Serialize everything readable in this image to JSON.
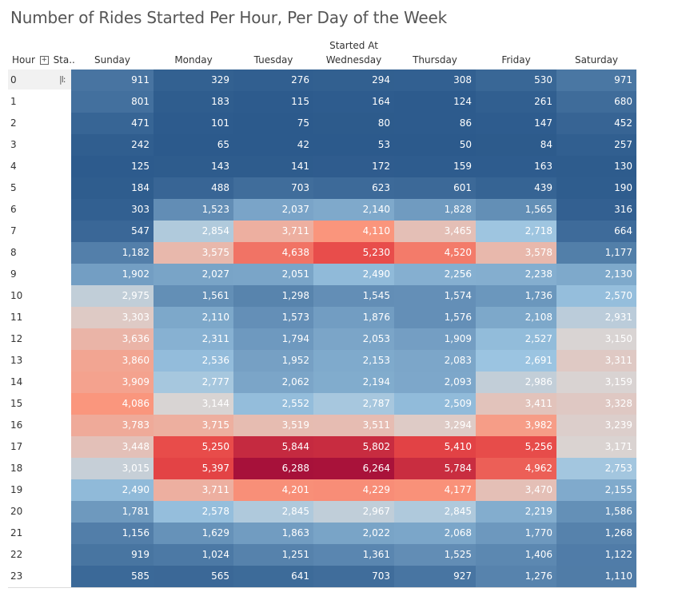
{
  "title": "Number of Rides Started Per Hour, Per Day of the Week",
  "row_header": "Hour",
  "row_header_2": "Sta..",
  "column_group_label": "Started At",
  "icons": {
    "expand": "plus-box-icon",
    "sort": "sort-icon"
  },
  "colors": {
    "low": "#2c5a8c",
    "mid": "#d9d4d3",
    "high": "#a7113a"
  },
  "chart_data": {
    "type": "heatmap",
    "title": "Number of Rides Started Per Hour, Per Day of the Week",
    "xlabel": "Started At",
    "ylabel": "Hour",
    "columns": [
      "Sunday",
      "Monday",
      "Tuesday",
      "Wednesday",
      "Thursday",
      "Friday",
      "Saturday"
    ],
    "rows": [
      "0",
      "1",
      "2",
      "3",
      "4",
      "5",
      "6",
      "7",
      "8",
      "9",
      "10",
      "11",
      "12",
      "13",
      "14",
      "15",
      "16",
      "17",
      "18",
      "19",
      "20",
      "21",
      "22",
      "23"
    ],
    "values": [
      [
        911,
        329,
        276,
        294,
        308,
        530,
        971
      ],
      [
        801,
        183,
        115,
        164,
        124,
        261,
        680
      ],
      [
        471,
        101,
        75,
        80,
        86,
        147,
        452
      ],
      [
        242,
        65,
        42,
        53,
        50,
        84,
        257
      ],
      [
        125,
        143,
        141,
        172,
        159,
        163,
        130
      ],
      [
        184,
        488,
        703,
        623,
        601,
        439,
        190
      ],
      [
        303,
        1523,
        2037,
        2140,
        1828,
        1565,
        316
      ],
      [
        547,
        2854,
        3711,
        4110,
        3465,
        2718,
        664
      ],
      [
        1182,
        3575,
        4638,
        5230,
        4520,
        3578,
        1177
      ],
      [
        1902,
        2027,
        2051,
        2490,
        2256,
        2238,
        2130
      ],
      [
        2975,
        1561,
        1298,
        1545,
        1574,
        1736,
        2570
      ],
      [
        3303,
        2110,
        1573,
        1876,
        1576,
        2108,
        2931
      ],
      [
        3636,
        2311,
        1794,
        2053,
        1909,
        2527,
        3150
      ],
      [
        3860,
        2536,
        1952,
        2153,
        2083,
        2691,
        3311
      ],
      [
        3909,
        2777,
        2062,
        2194,
        2093,
        2986,
        3159
      ],
      [
        4086,
        3144,
        2552,
        2787,
        2509,
        3411,
        3328
      ],
      [
        3783,
        3715,
        3519,
        3511,
        3294,
        3982,
        3239
      ],
      [
        3448,
        5250,
        5844,
        5802,
        5410,
        5256,
        3171
      ],
      [
        3015,
        5397,
        6288,
        6264,
        5784,
        4962,
        2753
      ],
      [
        2490,
        3711,
        4201,
        4229,
        4177,
        3470,
        2155
      ],
      [
        1781,
        2578,
        2845,
        2967,
        2845,
        2219,
        1586
      ],
      [
        1156,
        1629,
        1863,
        2022,
        2068,
        1770,
        1268
      ],
      [
        919,
        1024,
        1251,
        1361,
        1525,
        1406,
        1122
      ],
      [
        585,
        565,
        641,
        703,
        927,
        1276,
        1110
      ]
    ],
    "value_range": [
      42,
      6288
    ]
  }
}
